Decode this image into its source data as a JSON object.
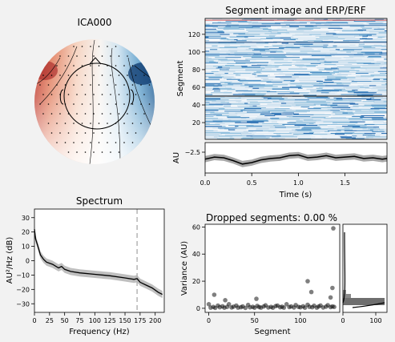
{
  "topomap": {
    "title": "ICA000",
    "colors": {
      "positive": "#b2182b",
      "negative": "#2166ac",
      "neutral": "#f7f7f7"
    }
  },
  "segment_image": {
    "title": "Segment image and ERP/ERF",
    "ylabel": "Segment",
    "yticks": [
      "120",
      "100",
      "80",
      "60",
      "40",
      "20"
    ],
    "ylim": [
      1,
      138
    ],
    "marker_segment": 50
  },
  "erp": {
    "ylabel": "AU",
    "ytick": "−2.5",
    "xlabel": "Time (s)",
    "xticks": [
      "0.0",
      "0.5",
      "1.0",
      "1.5"
    ],
    "xlim": [
      0,
      1.95
    ],
    "ylim": [
      -3.6,
      -1.4
    ],
    "colors": {
      "mean": "#000000",
      "band": "#a8a8a8"
    }
  },
  "spectrum": {
    "title": "Spectrum",
    "ylabel": "AU²/Hz (dB)",
    "xlabel": "Frequency (Hz)",
    "xticks": [
      "0",
      "25",
      "50",
      "75",
      "100",
      "125",
      "150",
      "175",
      "200"
    ],
    "yticks": [
      "30",
      "20",
      "10",
      "0",
      "−10",
      "−20",
      "−30"
    ],
    "marker_hz": 170
  },
  "dropped": {
    "title": "Dropped segments: 0.00 %",
    "ylabel": "Variance (AU)",
    "xlabel": "Segment",
    "xticks": [
      "0",
      "50",
      "100"
    ],
    "yticks": [
      "60",
      "40",
      "20",
      "0"
    ],
    "hist_xticks": [
      "0",
      "100"
    ]
  },
  "chart_data": [
    {
      "type": "heatmap",
      "title": "Segment image and ERP/ERF",
      "ylabel": "Segment",
      "ylim": [
        1,
        138
      ],
      "xlim": [
        0,
        1.95
      ],
      "colormap": "RdBu_r"
    },
    {
      "type": "line",
      "ylabel": "AU",
      "xlabel": "Time (s)",
      "xlim": [
        0,
        1.95
      ],
      "ylim": [
        -3.6,
        -1.4
      ],
      "x": [
        0,
        0.1,
        0.2,
        0.3,
        0.4,
        0.5,
        0.6,
        0.7,
        0.8,
        0.9,
        1.0,
        1.1,
        1.2,
        1.3,
        1.4,
        1.5,
        1.6,
        1.7,
        1.8,
        1.9,
        1.95
      ],
      "series": [
        {
          "values": [
            -2.6,
            -2.45,
            -2.5,
            -2.7,
            -2.95,
            -2.85,
            -2.65,
            -2.55,
            -2.5,
            -2.35,
            -2.3,
            -2.5,
            -2.45,
            -2.35,
            -2.5,
            -2.45,
            -2.4,
            -2.55,
            -2.5,
            -2.6,
            -2.55
          ],
          "band": 0.45
        }
      ]
    },
    {
      "type": "line",
      "title": "Spectrum",
      "xlabel": "Frequency (Hz)",
      "ylabel": "AU²/Hz (dB)",
      "xlim": [
        0,
        215
      ],
      "ylim": [
        -36,
        36
      ],
      "x": [
        0,
        2,
        5,
        10,
        15,
        20,
        30,
        40,
        45,
        50,
        60,
        75,
        100,
        125,
        150,
        165,
        170,
        175,
        185,
        195,
        205,
        212
      ],
      "series": [
        {
          "values": [
            22,
            15,
            11,
            4,
            1,
            -1,
            -2.5,
            -5,
            -4,
            -6,
            -7.5,
            -8.5,
            -9.5,
            -10.5,
            -12,
            -13,
            -12.5,
            -15,
            -17,
            -19,
            -22,
            -23.5
          ],
          "band": 2.5
        }
      ]
    },
    {
      "type": "scatter",
      "title": "Dropped segments: 0.00 %",
      "xlabel": "Segment",
      "ylabel": "Variance (AU)",
      "xlim": [
        -4,
        143
      ],
      "ylim": [
        -3,
        62
      ],
      "x": [
        0,
        2,
        5,
        7,
        10,
        12,
        15,
        17,
        20,
        22,
        25,
        27,
        30,
        32,
        35,
        37,
        40,
        43,
        45,
        48,
        50,
        53,
        55,
        57,
        60,
        62,
        65,
        68,
        70,
        73,
        75,
        78,
        80,
        82,
        85,
        88,
        90,
        93,
        95,
        98,
        100,
        103,
        105,
        108,
        110,
        113,
        115,
        118,
        120,
        122,
        125,
        128,
        130,
        133,
        135,
        137,
        6,
        18,
        52,
        108,
        112,
        133,
        135,
        136
      ],
      "y": [
        3,
        0.5,
        1,
        0.3,
        2,
        0.8,
        1.5,
        0.4,
        1,
        3,
        0.6,
        1.2,
        2,
        0.5,
        0.8,
        1.4,
        0.3,
        2.5,
        0.7,
        1.1,
        0.4,
        1.8,
        0.9,
        0.5,
        1.3,
        2.2,
        0.6,
        1,
        0.4,
        1.6,
        2,
        0.8,
        1.2,
        0.5,
        3,
        0.9,
        1.4,
        0.6,
        2.4,
        1,
        0.7,
        1.5,
        0.4,
        2.6,
        1.1,
        0.8,
        1.9,
        0.5,
        1.3,
        2.1,
        0.6,
        1.2,
        2.3,
        0.9,
        1.4,
        1,
        10,
        6,
        7,
        20,
        12,
        8,
        15,
        59
      ]
    }
  ]
}
